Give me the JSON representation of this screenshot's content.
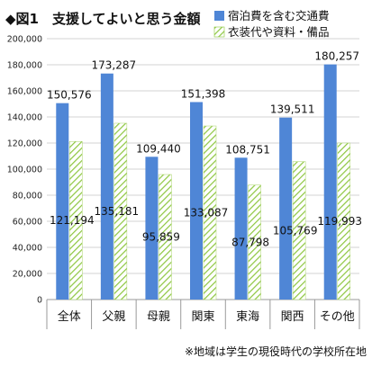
{
  "chart_data": {
    "type": "bar",
    "title": "◆図1　支援してよいと思う金額",
    "categories": [
      "全体",
      "父親",
      "母親",
      "関東",
      "東海",
      "関西",
      "その他"
    ],
    "series": [
      {
        "name": "宿泊費を含む交通費",
        "color": "#4f86d6",
        "values": [
          150576,
          173287,
          109440,
          151398,
          108751,
          139511,
          180257
        ],
        "labels": [
          "150,576",
          "173,287",
          "109,440",
          "151,398",
          "108,751",
          "139,511",
          "180,257"
        ]
      },
      {
        "name": "衣装代や資料・備品",
        "color": "#8dc63f",
        "pattern": "diagonal-hatch",
        "values": [
          121194,
          135181,
          95859,
          133087,
          87798,
          105769,
          119993
        ],
        "labels": [
          "121,194",
          "135,181",
          "95,859",
          "133,087",
          "87,798",
          "105,769",
          "119,993"
        ]
      }
    ],
    "yaxis": {
      "min": 0,
      "max": 200000,
      "ticks": [
        "0",
        "20,000",
        "40,000",
        "60,000",
        "80,000",
        "100,000",
        "120,000",
        "140,000",
        "160,000",
        "180,000",
        "200,000"
      ]
    },
    "grid": true,
    "legend_position": "top-right",
    "note": "※地域は学生の現役時代の学校所在地"
  }
}
